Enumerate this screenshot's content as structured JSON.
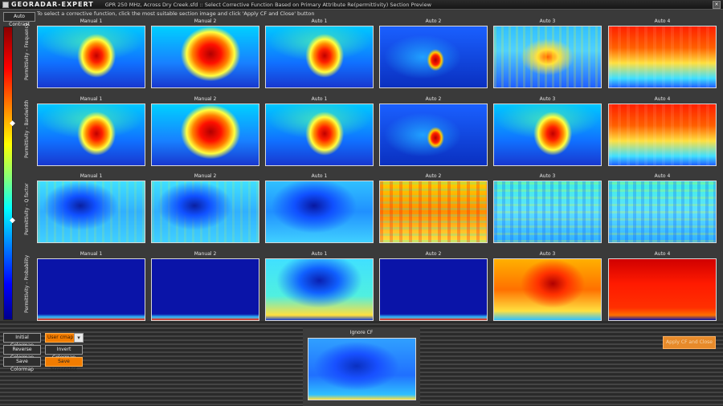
{
  "window": {
    "app_name": "GEORADAR-EXPERT",
    "title": "GPR 250 MHz, Across Dry Creek.sfd :: Select Corrective Function Based on Primary Attribute Re(permittivity) Section Preview",
    "close_glyph": "×"
  },
  "toolbar": {
    "auto_contrast_label": "Auto Contrast",
    "instruction": "To select a corrective function, click the most suitable section image and click 'Apply CF and Close' button"
  },
  "colorbar": {
    "colors": [
      "#8b0000",
      "#ff0000",
      "#ff8000",
      "#ffff00",
      "#00ffff",
      "#0000ff",
      "#00008b"
    ]
  },
  "rows": [
    {
      "label": "Permittivity - Frequency",
      "cells": [
        {
          "title": "Manual 1",
          "pattern": "blob-center"
        },
        {
          "title": "Manual 2",
          "pattern": "blob-center-large"
        },
        {
          "title": "Auto 1",
          "pattern": "blob-center"
        },
        {
          "title": "Auto 2",
          "pattern": "blue-small-blob"
        },
        {
          "title": "Auto 3",
          "pattern": "noisy-mid"
        },
        {
          "title": "Auto 4",
          "pattern": "hot-top"
        }
      ]
    },
    {
      "label": "Permittivity - Bandwidth",
      "cells": [
        {
          "title": "Manual 1",
          "pattern": "blob-center"
        },
        {
          "title": "Manual 2",
          "pattern": "blob-center-large"
        },
        {
          "title": "Auto 1",
          "pattern": "blob-center"
        },
        {
          "title": "Auto 2",
          "pattern": "blue-small-blob"
        },
        {
          "title": "Auto 3",
          "pattern": "blob-center"
        },
        {
          "title": "Auto 4",
          "pattern": "hot-top"
        }
      ]
    },
    {
      "label": "Permittivity - Q factor",
      "cells": [
        {
          "title": "Manual 1",
          "pattern": "cool-v"
        },
        {
          "title": "Manual 2",
          "pattern": "cool-v"
        },
        {
          "title": "Auto 1",
          "pattern": "cool-v-deep"
        },
        {
          "title": "Auto 2",
          "pattern": "noisy-hot"
        },
        {
          "title": "Auto 3",
          "pattern": "noisy-cyan"
        },
        {
          "title": "Auto 4",
          "pattern": "noisy-cyan"
        }
      ]
    },
    {
      "label": "Permittivity - Probability",
      "cells": [
        {
          "title": "Manual 1",
          "pattern": "deep-blue"
        },
        {
          "title": "Manual 2",
          "pattern": "deep-blue"
        },
        {
          "title": "Auto 1",
          "pattern": "cool-v-cyan"
        },
        {
          "title": "Auto 2",
          "pattern": "deep-blue"
        },
        {
          "title": "Auto 3",
          "pattern": "hot-v"
        },
        {
          "title": "Auto 4",
          "pattern": "all-hot"
        }
      ]
    }
  ],
  "controls": {
    "initial_colormap": "Initial Colormap",
    "user_cmap": "User cmap",
    "dropdown_glyph": "▾",
    "reverse_colormap": "Reverse Colormap",
    "invert_colormap": "Invert Colormap",
    "save_colormap": "Save Colormap",
    "save_screenshot": "Save Screenshot"
  },
  "ignore_cf": {
    "title": "Ignore CF"
  },
  "apply": {
    "label": "Apply CF and Close"
  },
  "markers": {
    "glyph": "◆"
  }
}
